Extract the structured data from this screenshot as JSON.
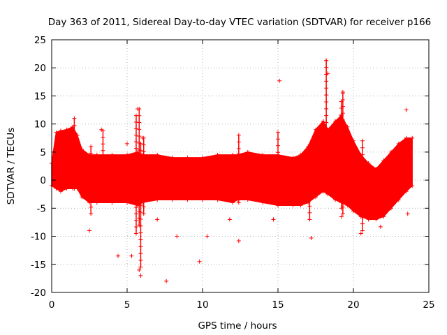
{
  "chart_data": {
    "type": "scatter",
    "title": "Day 363 of 2011, Sidereal Day-to-day VTEC variation (SDTVAR) for receiver p166",
    "xlabel": "GPS time / hours",
    "ylabel": "SDTVAR / TECUs",
    "xlim": [
      0,
      25
    ],
    "ylim": [
      -20,
      25
    ],
    "xticks": [
      0,
      5,
      10,
      15,
      20,
      25
    ],
    "yticks": [
      -20,
      -15,
      -10,
      -5,
      0,
      5,
      10,
      15,
      20,
      25
    ],
    "grid": true,
    "marker": "+",
    "color": "#ff0000",
    "envelope": {
      "description": "dense band of points, upper and lower bound vs GPS time",
      "x": [
        0.0,
        0.3,
        0.6,
        1.0,
        1.4,
        1.7,
        2.0,
        2.5,
        3.0,
        4.0,
        5.0,
        5.7,
        6.0,
        7.0,
        8.0,
        9.0,
        10.0,
        11.0,
        12.0,
        12.3,
        13.0,
        14.0,
        15.0,
        16.0,
        16.5,
        17.0,
        17.5,
        18.0,
        18.3,
        18.8,
        19.2,
        19.6,
        20.0,
        20.5,
        21.0,
        21.5,
        22.0,
        22.5,
        23.0,
        23.5,
        23.9
      ],
      "upper": [
        3.0,
        8.5,
        8.8,
        9.0,
        9.5,
        8.0,
        5.5,
        4.5,
        4.5,
        4.5,
        4.5,
        5.0,
        4.5,
        4.5,
        4.0,
        4.0,
        4.0,
        4.5,
        4.5,
        4.5,
        5.0,
        4.5,
        4.5,
        4.0,
        4.5,
        6.0,
        9.0,
        10.5,
        9.0,
        10.5,
        11.5,
        9.5,
        7.0,
        4.5,
        3.0,
        2.0,
        3.5,
        5.0,
        6.5,
        7.5,
        7.5
      ],
      "lower": [
        -1.0,
        -1.5,
        -2.0,
        -1.5,
        -1.5,
        -1.5,
        -3.0,
        -4.0,
        -4.0,
        -4.0,
        -4.0,
        -4.5,
        -4.0,
        -3.5,
        -3.5,
        -3.5,
        -3.5,
        -3.5,
        -4.0,
        -3.5,
        -3.5,
        -4.0,
        -4.5,
        -4.5,
        -4.5,
        -4.0,
        -3.0,
        -2.0,
        -2.5,
        -3.5,
        -4.0,
        -4.5,
        -5.5,
        -6.5,
        -7.0,
        -7.0,
        -6.5,
        -5.0,
        -3.5,
        -2.0,
        -1.0
      ]
    },
    "outliers": {
      "x": [
        2.5,
        3.3,
        4.4,
        5.0,
        5.3,
        5.7,
        5.8,
        5.9,
        6.0,
        7.0,
        7.6,
        8.3,
        9.8,
        10.3,
        11.8,
        12.4,
        14.7,
        15.1,
        17.2,
        18.2,
        18.3,
        19.2,
        19.3,
        20.5,
        21.8,
        23.5,
        23.6
      ],
      "y": [
        -9.0,
        9.0,
        -13.5,
        6.5,
        -13.5,
        12.7,
        -16.0,
        -17.0,
        7.5,
        -7.0,
        -18.0,
        -10.0,
        -14.5,
        -10.0,
        -7.0,
        -10.8,
        -7.0,
        17.7,
        -10.3,
        21.3,
        19.0,
        -6.5,
        15.7,
        -9.5,
        -8.3,
        12.5,
        -6.0
      ]
    },
    "spikes": {
      "description": "vertical clusters of points extending beyond the band",
      "x": [
        1.5,
        2.6,
        3.4,
        5.6,
        5.8,
        5.9,
        6.1,
        12.4,
        15.0,
        17.1,
        18.2,
        19.2,
        19.3,
        20.6
      ],
      "ymin": [
        -1.5,
        -6.0,
        -3.0,
        -9.5,
        -8.0,
        -15.5,
        -6.0,
        -4.0,
        -4.5,
        -7.0,
        -2.0,
        -5.0,
        -6.0,
        -9.0
      ],
      "ymax": [
        11.0,
        6.0,
        8.8,
        11.5,
        12.7,
        6.5,
        7.5,
        8.0,
        8.5,
        6.0,
        21.3,
        14.0,
        15.5,
        7.0
      ]
    }
  }
}
